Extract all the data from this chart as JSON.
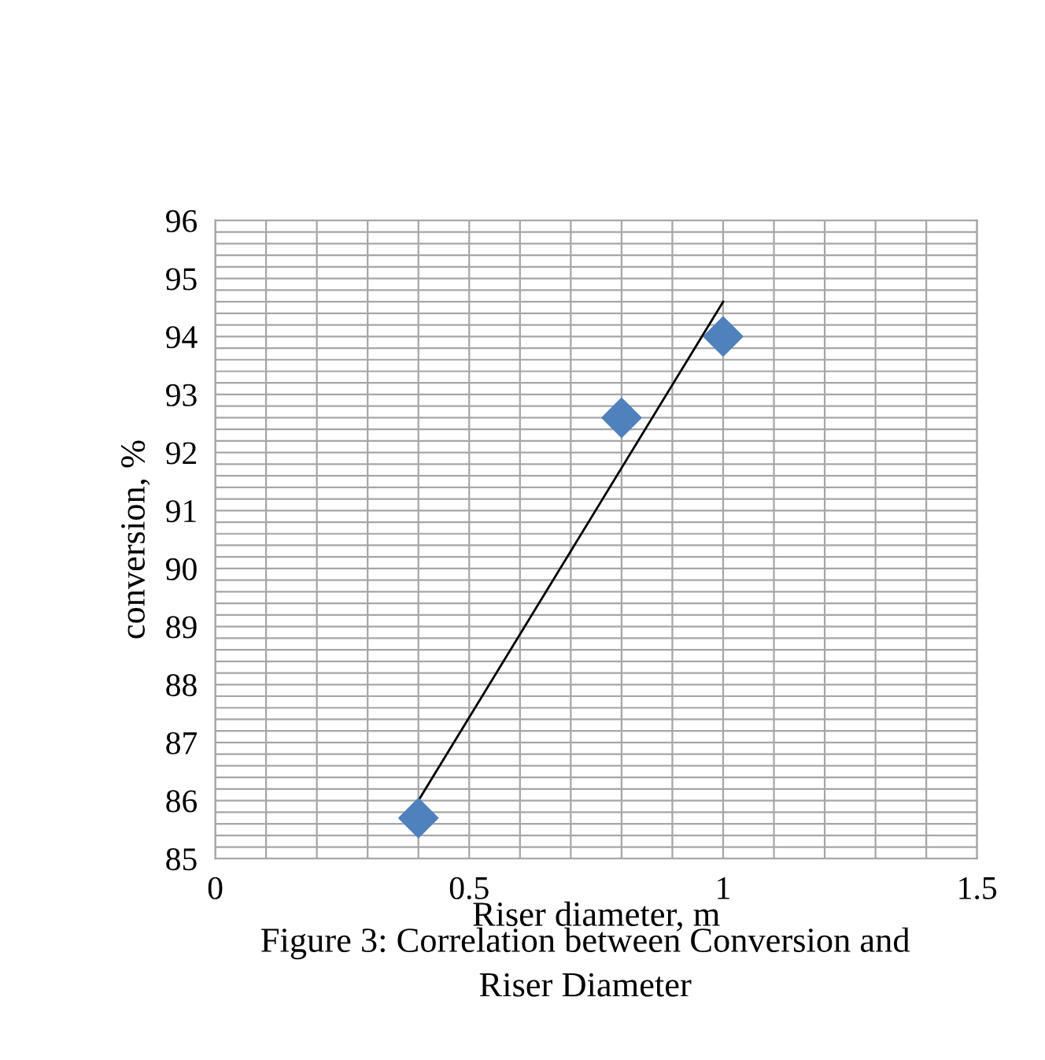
{
  "chart_data": {
    "type": "scatter",
    "xlabel": "Riser diameter, m",
    "ylabel": "conversion, %",
    "annotations": [
      "Figure 3: Correlation between Conversion and",
      "Riser Diameter"
    ],
    "series": [
      {
        "color": "#4f81bd",
        "marker": "diamond",
        "x": [
          0.4,
          0.8,
          1.0
        ],
        "values": [
          85.7,
          92.6,
          94.0
        ]
      },
      {
        "type": "line",
        "color": "#000000",
        "marker": "none",
        "line_style": "solid",
        "x": [
          0.4,
          1.0
        ],
        "values": [
          86.0,
          94.6
        ]
      }
    ],
    "xlim": [
      0,
      1.5
    ],
    "ylim": [
      85,
      96
    ],
    "xticks": [
      0,
      {
        "value": 0.1,
        "label": null
      },
      {
        "value": 0.2,
        "label": null
      },
      {
        "value": 0.3,
        "label": null
      },
      {
        "value": 0.4,
        "label": null
      },
      0.5,
      {
        "value": 0.6,
        "label": null
      },
      {
        "value": 0.7,
        "label": null
      },
      {
        "value": 0.8,
        "label": null
      },
      {
        "value": 0.9,
        "label": null
      },
      1,
      {
        "value": 1.1,
        "label": null
      },
      {
        "value": 1.2,
        "label": null
      },
      {
        "value": 1.3,
        "label": null
      },
      {
        "value": 1.4,
        "label": null
      },
      1.5
    ],
    "yticks": [
      85,
      {
        "value": 85.2,
        "label": null
      },
      {
        "value": 85.4,
        "label": null
      },
      {
        "value": 85.6,
        "label": null
      },
      {
        "value": 85.8,
        "label": null
      },
      86,
      {
        "value": 86.2,
        "label": null
      },
      {
        "value": 86.4,
        "label": null
      },
      {
        "value": 86.6,
        "label": null
      },
      {
        "value": 86.8,
        "label": null
      },
      87,
      {
        "value": 87.2,
        "label": null
      },
      {
        "value": 87.4,
        "label": null
      },
      {
        "value": 87.6,
        "label": null
      },
      {
        "value": 87.8,
        "label": null
      },
      88,
      {
        "value": 88.2,
        "label": null
      },
      {
        "value": 88.4,
        "label": null
      },
      {
        "value": 88.6,
        "label": null
      },
      {
        "value": 88.8,
        "label": null
      },
      89,
      {
        "value": 89.2,
        "label": null
      },
      {
        "value": 89.4,
        "label": null
      },
      {
        "value": 89.6,
        "label": null
      },
      {
        "value": 89.8,
        "label": null
      },
      90,
      {
        "value": 90.2,
        "label": null
      },
      {
        "value": 90.4,
        "label": null
      },
      {
        "value": 90.6,
        "label": null
      },
      {
        "value": 90.8,
        "label": null
      },
      91,
      {
        "value": 91.2,
        "label": null
      },
      {
        "value": 91.4,
        "label": null
      },
      {
        "value": 91.6,
        "label": null
      },
      {
        "value": 91.8,
        "label": null
      },
      92,
      {
        "value": 92.2,
        "label": null
      },
      {
        "value": 92.4,
        "label": null
      },
      {
        "value": 92.6,
        "label": null
      },
      {
        "value": 92.8,
        "label": null
      },
      93,
      {
        "value": 93.2,
        "label": null
      },
      {
        "value": 93.4,
        "label": null
      },
      {
        "value": 93.6,
        "label": null
      },
      {
        "value": 93.8,
        "label": null
      },
      94,
      {
        "value": 94.2,
        "label": null
      },
      {
        "value": 94.4,
        "label": null
      },
      {
        "value": 94.6,
        "label": null
      },
      {
        "value": 94.8,
        "label": null
      },
      95,
      {
        "value": 95.2,
        "label": null
      },
      {
        "value": 95.4,
        "label": null
      },
      {
        "value": 95.6,
        "label": null
      },
      {
        "value": 95.8,
        "label": null
      },
      96
    ],
    "grid": true
  }
}
